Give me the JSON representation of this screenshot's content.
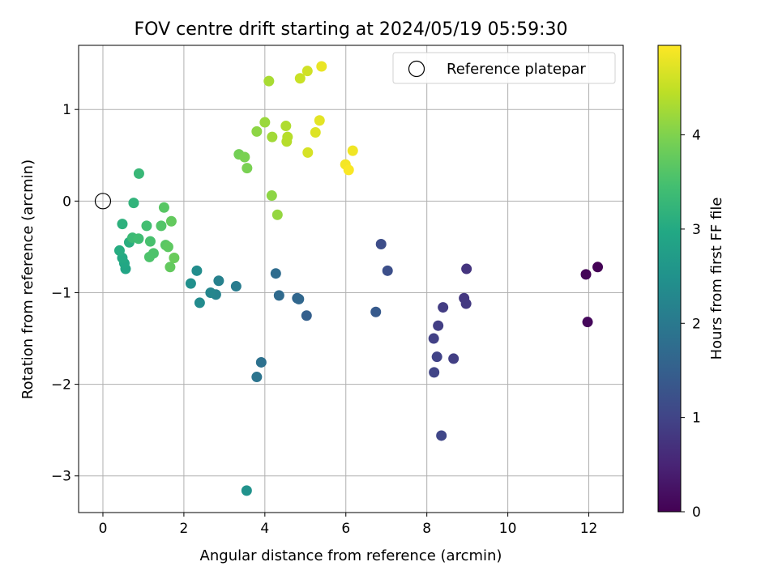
{
  "chart_data": {
    "type": "scatter",
    "title": "FOV centre drift starting at 2024/05/19 05:59:30",
    "xlabel": "Angular distance from reference (arcmin)",
    "ylabel": "Rotation from reference (arcmin)",
    "xlim": [
      -0.6,
      12.85
    ],
    "ylim": [
      -3.4,
      1.7
    ],
    "x_ticks": [
      "0",
      "2",
      "4",
      "6",
      "8",
      "10",
      "12"
    ],
    "y_ticks": [
      "1",
      "0",
      "−1",
      "−2",
      "−3"
    ],
    "grid": true,
    "legend": {
      "position": "top-right",
      "entries": [
        "Reference platepar"
      ]
    },
    "reference_point": {
      "x": 0,
      "y": 0
    },
    "colorbar": {
      "label": "Hours from first FF file",
      "range": [
        0,
        4.95
      ],
      "ticks": [
        "0",
        "1",
        "2",
        "3",
        "4"
      ],
      "colormap": "viridis"
    },
    "points": [
      {
        "x": 12.22,
        "y": -0.72,
        "t": 0.02
      },
      {
        "x": 11.93,
        "y": -0.8,
        "t": 0.05
      },
      {
        "x": 11.97,
        "y": -1.32,
        "t": 0.1
      },
      {
        "x": 8.98,
        "y": -0.74,
        "t": 0.75
      },
      {
        "x": 8.92,
        "y": -1.06,
        "t": 0.8
      },
      {
        "x": 8.97,
        "y": -1.12,
        "t": 0.82
      },
      {
        "x": 8.4,
        "y": -1.16,
        "t": 0.88
      },
      {
        "x": 8.28,
        "y": -1.36,
        "t": 0.9
      },
      {
        "x": 8.17,
        "y": -1.5,
        "t": 0.95
      },
      {
        "x": 8.66,
        "y": -1.72,
        "t": 0.92
      },
      {
        "x": 8.25,
        "y": -1.7,
        "t": 0.98
      },
      {
        "x": 8.18,
        "y": -1.87,
        "t": 1.0
      },
      {
        "x": 8.36,
        "y": -2.56,
        "t": 1.05
      },
      {
        "x": 6.87,
        "y": -0.47,
        "t": 1.15
      },
      {
        "x": 7.03,
        "y": -0.76,
        "t": 1.2
      },
      {
        "x": 6.74,
        "y": -1.21,
        "t": 1.4
      },
      {
        "x": 5.03,
        "y": -1.25,
        "t": 1.5
      },
      {
        "x": 4.8,
        "y": -1.06,
        "t": 1.6
      },
      {
        "x": 4.84,
        "y": -1.07,
        "t": 1.65
      },
      {
        "x": 4.35,
        "y": -1.03,
        "t": 1.7
      },
      {
        "x": 4.27,
        "y": -0.79,
        "t": 1.75
      },
      {
        "x": 3.91,
        "y": -1.76,
        "t": 1.85
      },
      {
        "x": 3.8,
        "y": -1.92,
        "t": 1.9
      },
      {
        "x": 3.29,
        "y": -0.93,
        "t": 2.05
      },
      {
        "x": 2.86,
        "y": -0.87,
        "t": 2.15
      },
      {
        "x": 2.79,
        "y": -1.02,
        "t": 2.2
      },
      {
        "x": 2.66,
        "y": -1.0,
        "t": 2.25
      },
      {
        "x": 2.39,
        "y": -1.11,
        "t": 2.35
      },
      {
        "x": 2.32,
        "y": -0.76,
        "t": 2.4
      },
      {
        "x": 2.17,
        "y": -0.9,
        "t": 2.45
      },
      {
        "x": 3.55,
        "y": -3.16,
        "t": 2.5
      },
      {
        "x": 0.56,
        "y": -0.74,
        "t": 2.9
      },
      {
        "x": 0.53,
        "y": -0.68,
        "t": 2.95
      },
      {
        "x": 0.48,
        "y": -0.62,
        "t": 3.0
      },
      {
        "x": 0.41,
        "y": -0.54,
        "t": 3.05
      },
      {
        "x": 0.65,
        "y": -0.45,
        "t": 3.1
      },
      {
        "x": 0.48,
        "y": -0.25,
        "t": 3.15
      },
      {
        "x": 0.76,
        "y": -0.02,
        "t": 3.2
      },
      {
        "x": 0.89,
        "y": 0.3,
        "t": 3.3
      },
      {
        "x": 0.73,
        "y": -0.4,
        "t": 3.35
      },
      {
        "x": 0.88,
        "y": -0.41,
        "t": 3.4
      },
      {
        "x": 1.08,
        "y": -0.27,
        "t": 3.45
      },
      {
        "x": 1.17,
        "y": -0.44,
        "t": 3.5
      },
      {
        "x": 1.25,
        "y": -0.57,
        "t": 3.55
      },
      {
        "x": 1.15,
        "y": -0.61,
        "t": 3.55
      },
      {
        "x": 1.44,
        "y": -0.27,
        "t": 3.6
      },
      {
        "x": 1.51,
        "y": -0.07,
        "t": 3.65
      },
      {
        "x": 1.55,
        "y": -0.48,
        "t": 3.65
      },
      {
        "x": 1.61,
        "y": -0.5,
        "t": 3.7
      },
      {
        "x": 1.69,
        "y": -0.22,
        "t": 3.75
      },
      {
        "x": 1.66,
        "y": -0.72,
        "t": 3.75
      },
      {
        "x": 1.76,
        "y": -0.62,
        "t": 3.8
      },
      {
        "x": 3.36,
        "y": 0.51,
        "t": 3.9
      },
      {
        "x": 3.5,
        "y": 0.48,
        "t": 3.95
      },
      {
        "x": 3.56,
        "y": 0.36,
        "t": 3.95
      },
      {
        "x": 4.17,
        "y": 0.06,
        "t": 4.1
      },
      {
        "x": 4.31,
        "y": -0.15,
        "t": 4.15
      },
      {
        "x": 3.8,
        "y": 0.76,
        "t": 4.1
      },
      {
        "x": 4.0,
        "y": 0.86,
        "t": 4.2
      },
      {
        "x": 4.18,
        "y": 0.7,
        "t": 4.25
      },
      {
        "x": 4.1,
        "y": 1.31,
        "t": 4.3
      },
      {
        "x": 4.52,
        "y": 0.82,
        "t": 4.35
      },
      {
        "x": 4.56,
        "y": 0.7,
        "t": 4.4
      },
      {
        "x": 4.54,
        "y": 0.65,
        "t": 4.4
      },
      {
        "x": 4.87,
        "y": 1.34,
        "t": 4.55
      },
      {
        "x": 5.05,
        "y": 1.42,
        "t": 4.6
      },
      {
        "x": 5.06,
        "y": 0.53,
        "t": 4.65
      },
      {
        "x": 5.25,
        "y": 0.75,
        "t": 4.7
      },
      {
        "x": 5.35,
        "y": 0.88,
        "t": 4.75
      },
      {
        "x": 5.4,
        "y": 1.47,
        "t": 4.8
      },
      {
        "x": 6.17,
        "y": 0.55,
        "t": 4.85
      },
      {
        "x": 5.99,
        "y": 0.4,
        "t": 4.88
      },
      {
        "x": 6.07,
        "y": 0.34,
        "t": 4.92
      }
    ]
  }
}
